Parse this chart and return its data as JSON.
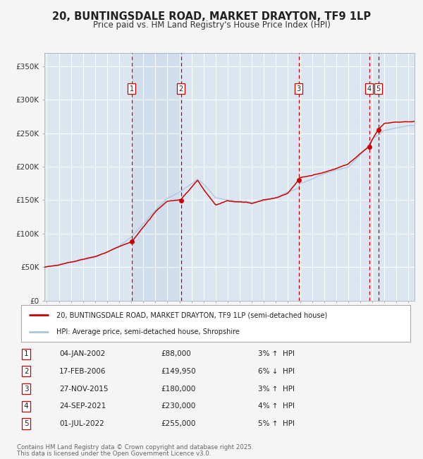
{
  "title_line1": "20, BUNTINGSDALE ROAD, MARKET DRAYTON, TF9 1LP",
  "title_line2": "Price paid vs. HM Land Registry's House Price Index (HPI)",
  "background_color": "#f5f5f5",
  "plot_bg_color": "#dce6f0",
  "grid_color": "#ffffff",
  "hpi_color": "#aac4e0",
  "price_color": "#cc0000",
  "transactions": [
    {
      "num": 1,
      "date_str": "04-JAN-2002",
      "date_x": 2002.03,
      "price": 88000,
      "pct": "3%",
      "dir": "↑"
    },
    {
      "num": 2,
      "date_str": "17-FEB-2006",
      "date_x": 2006.12,
      "price": 149950,
      "pct": "6%",
      "dir": "↓"
    },
    {
      "num": 3,
      "date_str": "27-NOV-2015",
      "date_x": 2015.9,
      "price": 180000,
      "pct": "3%",
      "dir": "↑"
    },
    {
      "num": 4,
      "date_str": "24-SEP-2021",
      "date_x": 2021.73,
      "price": 230000,
      "pct": "4%",
      "dir": "↑"
    },
    {
      "num": 5,
      "date_str": "01-JUL-2022",
      "date_x": 2022.5,
      "price": 255000,
      "pct": "5%",
      "dir": "↑"
    }
  ],
  "legend_label1": "20, BUNTINGSDALE ROAD, MARKET DRAYTON, TF9 1LP (semi-detached house)",
  "legend_label2": "HPI: Average price, semi-detached house, Shropshire",
  "footer1": "Contains HM Land Registry data © Crown copyright and database right 2025.",
  "footer2": "This data is licensed under the Open Government Licence v3.0.",
  "yticks": [
    0,
    50000,
    100000,
    150000,
    200000,
    250000,
    300000,
    350000
  ],
  "ylabels": [
    "£0",
    "£50K",
    "£100K",
    "£150K",
    "£200K",
    "£250K",
    "£300K",
    "£350K"
  ],
  "xmin": 1994.8,
  "xmax": 2025.5,
  "ymin": 0,
  "ymax": 370000
}
